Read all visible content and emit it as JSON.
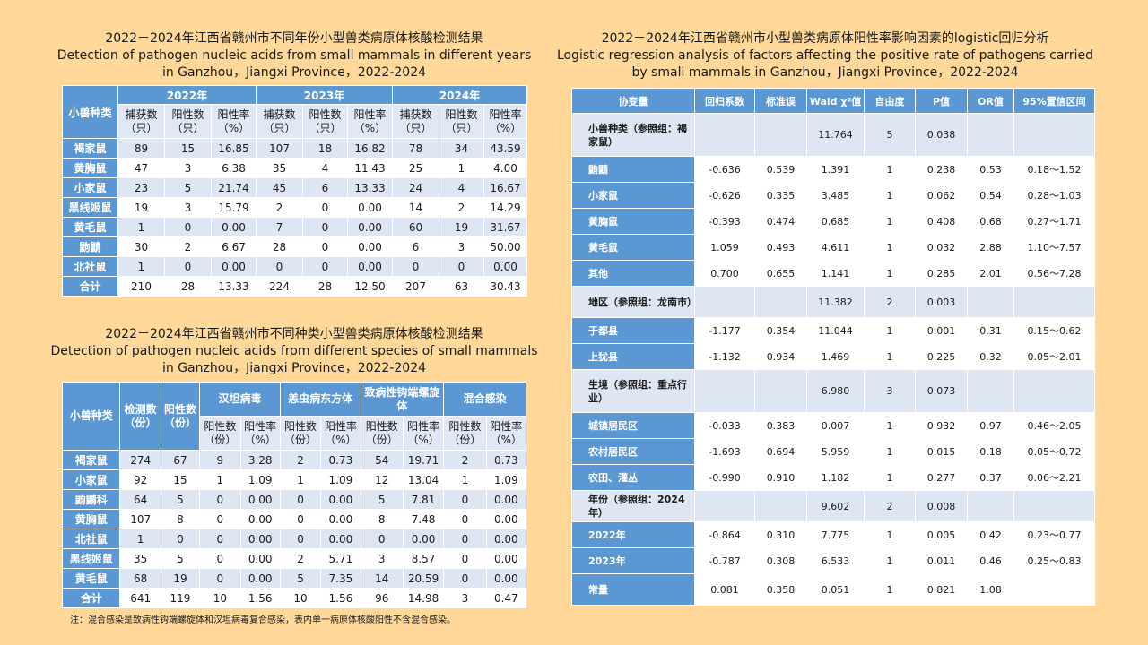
{
  "table1": {
    "title_cn": "2022－2024年江西省赣州市不同年份小型兽类病原体核酸检测结果",
    "title_en1": "Detection of pathogen nucleic acids from small mammals in different years",
    "title_en2": "in Ganzhou，Jiangxi Province，2022-2024",
    "species_header": "小兽种类",
    "years": [
      "2022年",
      "2023年",
      "2024年"
    ],
    "sub_headers": [
      "捕获数（只）",
      "阳性数（只）",
      "阳性率（%）"
    ],
    "rows": [
      {
        "name": "褐家鼠",
        "cells": [
          "89",
          "15",
          "16.85",
          "107",
          "18",
          "16.82",
          "78",
          "34",
          "43.59"
        ]
      },
      {
        "name": "黄胸鼠",
        "cells": [
          "47",
          "3",
          "6.38",
          "35",
          "4",
          "11.43",
          "25",
          "1",
          "4.00"
        ]
      },
      {
        "name": "小家鼠",
        "cells": [
          "23",
          "5",
          "21.74",
          "45",
          "6",
          "13.33",
          "24",
          "4",
          "16.67"
        ]
      },
      {
        "name": "黑线姬鼠",
        "cells": [
          "19",
          "3",
          "15.79",
          "2",
          "0",
          "0.00",
          "14",
          "2",
          "14.29"
        ]
      },
      {
        "name": "黄毛鼠",
        "cells": [
          "1",
          "0",
          "0.00",
          "7",
          "0",
          "0.00",
          "60",
          "19",
          "31.67"
        ]
      },
      {
        "name": "鼩鼱",
        "cells": [
          "30",
          "2",
          "6.67",
          "28",
          "0",
          "0.00",
          "6",
          "3",
          "50.00"
        ]
      },
      {
        "name": "北社鼠",
        "cells": [
          "1",
          "0",
          "0.00",
          "0",
          "0",
          "0.00",
          "0",
          "0",
          "0.00"
        ]
      },
      {
        "name": "合计",
        "cells": [
          "210",
          "28",
          "13.33",
          "224",
          "28",
          "12.50",
          "207",
          "63",
          "30.43"
        ]
      }
    ]
  },
  "table2": {
    "title_cn": "2022－2024年江西省赣州市不同种类小型兽类病原体核酸检测结果",
    "title_en1": "Detection of pathogen nucleic acids from different species of small mammals",
    "title_en2": "in Ganzhou，Jiangxi Province，2022-2024",
    "species_header": "小兽种类",
    "tested_header": "检测数（份）",
    "positive_header": "阳性数（份）",
    "pathogens": [
      "汉坦病毒",
      "恙虫病东方体",
      "致病性钩端螺旋体",
      "混合感染"
    ],
    "sub_headers": [
      "阳性数（份）",
      "阳性率（%）"
    ],
    "rows": [
      {
        "name": "褐家鼠",
        "cells": [
          "274",
          "67",
          "9",
          "3.28",
          "2",
          "0.73",
          "54",
          "19.71",
          "2",
          "0.73"
        ]
      },
      {
        "name": "小家鼠",
        "cells": [
          "92",
          "15",
          "1",
          "1.09",
          "1",
          "1.09",
          "12",
          "13.04",
          "1",
          "1.09"
        ]
      },
      {
        "name": "鼩鼱科",
        "cells": [
          "64",
          "5",
          "0",
          "0.00",
          "0",
          "0.00",
          "5",
          "7.81",
          "0",
          "0.00"
        ]
      },
      {
        "name": "黄胸鼠",
        "cells": [
          "107",
          "8",
          "0",
          "0.00",
          "0",
          "0.00",
          "8",
          "7.48",
          "0",
          "0.00"
        ]
      },
      {
        "name": "北社鼠",
        "cells": [
          "1",
          "0",
          "0",
          "0.00",
          "0",
          "0.00",
          "0",
          "0.00",
          "0",
          "0.00"
        ]
      },
      {
        "name": "黑线姬鼠",
        "cells": [
          "35",
          "5",
          "0",
          "0.00",
          "2",
          "5.71",
          "3",
          "8.57",
          "0",
          "0.00"
        ]
      },
      {
        "name": "黄毛鼠",
        "cells": [
          "68",
          "19",
          "0",
          "0.00",
          "5",
          "7.35",
          "14",
          "20.59",
          "0",
          "0.00"
        ]
      },
      {
        "name": "合计",
        "cells": [
          "641",
          "119",
          "10",
          "1.56",
          "10",
          "1.56",
          "96",
          "14.98",
          "3",
          "0.47"
        ]
      }
    ],
    "note": "注：混合感染是致病性钩端螺旋体和汉坦病毒复合感染，表内单一病原体核酸阳性不含混合感染。"
  },
  "table3": {
    "title_cn": "2022－2024年江西省赣州市小型兽类病原体阳性率影响因素的logistic回归分析",
    "title_en1": "Logistic regression analysis of factors affecting the positive rate of pathogens carried",
    "title_en2": "by small mammals in Ganzhou，Jiangxi Province，2022-2024",
    "headers": [
      "协变量",
      "回归系数",
      "标准误",
      "Wald χ²值",
      "自由度",
      "P值",
      "OR值",
      "95%置信区间"
    ],
    "rows": [
      {
        "name": "小兽种类（参照组：褐家鼠）",
        "group": true,
        "cells": [
          "",
          "",
          "11.764",
          "5",
          "0.038",
          "",
          ""
        ]
      },
      {
        "name": "鼩鼱",
        "group": false,
        "cells": [
          "-0.636",
          "0.539",
          "1.391",
          "1",
          "0.238",
          "0.53",
          "0.18～1.52"
        ]
      },
      {
        "name": "小家鼠",
        "group": false,
        "cells": [
          "-0.626",
          "0.335",
          "3.485",
          "1",
          "0.062",
          "0.54",
          "0.28～1.03"
        ]
      },
      {
        "name": "黄胸鼠",
        "group": false,
        "cells": [
          "-0.393",
          "0.474",
          "0.685",
          "1",
          "0.408",
          "0.68",
          "0.27～1.71"
        ]
      },
      {
        "name": "黄毛鼠",
        "group": false,
        "cells": [
          "1.059",
          "0.493",
          "4.611",
          "1",
          "0.032",
          "2.88",
          "1.10～7.57"
        ]
      },
      {
        "name": "其他",
        "group": false,
        "cells": [
          "0.700",
          "0.655",
          "1.141",
          "1",
          "0.285",
          "2.01",
          "0.56～7.28"
        ]
      },
      {
        "name": "地区（参照组：龙南市）",
        "group": true,
        "cells": [
          "",
          "",
          "11.382",
          "2",
          "0.003",
          "",
          ""
        ]
      },
      {
        "name": "于都县",
        "group": false,
        "cells": [
          "-1.177",
          "0.354",
          "11.044",
          "1",
          "0.001",
          "0.31",
          "0.15～0.62"
        ]
      },
      {
        "name": "上犹县",
        "group": false,
        "cells": [
          "-1.132",
          "0.934",
          "1.469",
          "1",
          "0.225",
          "0.32",
          "0.05～2.01"
        ]
      },
      {
        "name": "生境（参照组：重点行业）",
        "group": true,
        "cells": [
          "",
          "",
          "6.980",
          "3",
          "0.073",
          "",
          ""
        ]
      },
      {
        "name": "城镇居民区",
        "group": false,
        "cells": [
          "-0.033",
          "0.383",
          "0.007",
          "1",
          "0.932",
          "0.97",
          "0.46～2.05"
        ]
      },
      {
        "name": "农村居民区",
        "group": false,
        "cells": [
          "-1.693",
          "0.694",
          "5.959",
          "1",
          "0.015",
          "0.18",
          "0.05～0.72"
        ]
      },
      {
        "name": "农田、灌丛",
        "group": false,
        "cells": [
          "-0.990",
          "0.910",
          "1.182",
          "1",
          "0.277",
          "0.37",
          "0.06～2.21"
        ]
      },
      {
        "name": "年份（参照组：2024年）",
        "group": true,
        "cells": [
          "",
          "",
          "9.602",
          "2",
          "0.008",
          "",
          ""
        ]
      },
      {
        "name": "2022年",
        "group": false,
        "cells": [
          "-0.864",
          "0.310",
          "7.775",
          "1",
          "0.005",
          "0.42",
          "0.23～0.77"
        ]
      },
      {
        "name": "2023年",
        "group": false,
        "cells": [
          "-0.787",
          "0.308",
          "6.533",
          "1",
          "0.011",
          "0.46",
          "0.25～0.83"
        ]
      },
      {
        "name": "常量",
        "group": false,
        "cells": [
          "0.081",
          "0.358",
          "0.051",
          "1",
          "0.821",
          "1.08",
          ""
        ]
      }
    ]
  },
  "colors": {
    "background": "#ffd89a",
    "header_blue": "#5b97d3",
    "band_light": "#dde6f2",
    "white": "#ffffff"
  }
}
